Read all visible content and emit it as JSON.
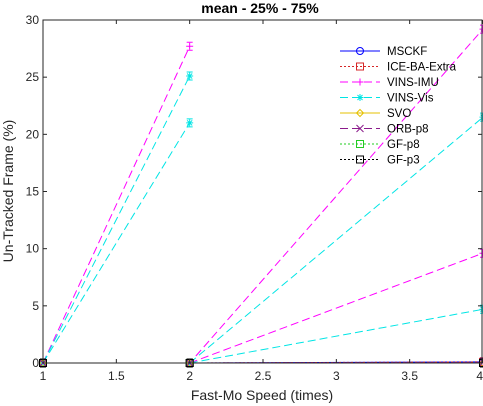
{
  "chart_data": {
    "type": "line",
    "title": "mean - 25% - 75%",
    "xlabel": "Fast-Mo Speed (times)",
    "ylabel": "Un-Tracked Frame (%)",
    "xlim": [
      1,
      4
    ],
    "ylim": [
      0,
      30
    ],
    "x_ticks": [
      1,
      1.5,
      2,
      2.5,
      3,
      3.5,
      4
    ],
    "x_tick_labels": [
      "1",
      "1.5",
      "2",
      "2.5",
      "3",
      "3.5",
      "4"
    ],
    "y_ticks": [
      0,
      5,
      10,
      15,
      20,
      25,
      30
    ],
    "y_tick_labels": [
      "0",
      "5",
      "10",
      "15",
      "20",
      "25",
      "30"
    ],
    "grid": false,
    "legend_position": "top-right",
    "series": [
      {
        "name": "MSCKF",
        "color": "#0000ff",
        "line_style": "solid",
        "marker": "circle",
        "lines": [
          [
            [
              1,
              0
            ],
            [
              2,
              0
            ],
            [
              4,
              0.1
            ]
          ]
        ]
      },
      {
        "name": "ICE-BA-Extra",
        "color": "#d62728",
        "line_style": "dotted",
        "marker": "square",
        "lines": [
          [
            [
              1,
              0
            ],
            [
              2,
              0
            ],
            [
              4,
              0.1
            ]
          ]
        ]
      },
      {
        "name": "VINS-IMU",
        "color": "#ff00ff",
        "line_style": "dashed",
        "marker": "plus",
        "lines": [
          [
            [
              1,
              0
            ],
            [
              2,
              27.7
            ]
          ],
          [
            [
              1,
              0
            ],
            [
              2,
              0
            ],
            [
              4,
              29.2
            ]
          ],
          [
            [
              2,
              0
            ],
            [
              4,
              9.6
            ]
          ]
        ]
      },
      {
        "name": "VINS-Vis",
        "color": "#00e5e5",
        "line_style": "dashed",
        "marker": "star",
        "lines": [
          [
            [
              1,
              0
            ],
            [
              2,
              25.1
            ]
          ],
          [
            [
              1,
              0
            ],
            [
              2,
              21.0
            ]
          ],
          [
            [
              2,
              0
            ],
            [
              4,
              21.5
            ]
          ],
          [
            [
              2,
              0
            ],
            [
              4,
              4.7
            ]
          ]
        ]
      },
      {
        "name": "SVO",
        "color": "#e5c000",
        "line_style": "solid",
        "marker": "diamond",
        "lines": [
          [
            [
              1,
              0
            ],
            [
              2,
              0
            ],
            [
              4,
              0
            ]
          ]
        ]
      },
      {
        "name": "ORB-p8",
        "color": "#8b1a8b",
        "line_style": "dashed",
        "marker": "x",
        "lines": [
          [
            [
              1,
              0
            ],
            [
              2,
              0
            ],
            [
              4,
              0.05
            ]
          ]
        ]
      },
      {
        "name": "GF-p8",
        "color": "#22cc22",
        "line_style": "dotted",
        "marker": "square",
        "lines": [
          [
            [
              1,
              0
            ],
            [
              2,
              0
            ],
            [
              4,
              0
            ]
          ]
        ]
      },
      {
        "name": "GF-p3",
        "color": "#000000",
        "line_style": "dotted",
        "marker": "square",
        "lines": [
          [
            [
              1,
              0
            ],
            [
              2,
              0
            ],
            [
              4,
              0
            ]
          ]
        ]
      }
    ]
  }
}
